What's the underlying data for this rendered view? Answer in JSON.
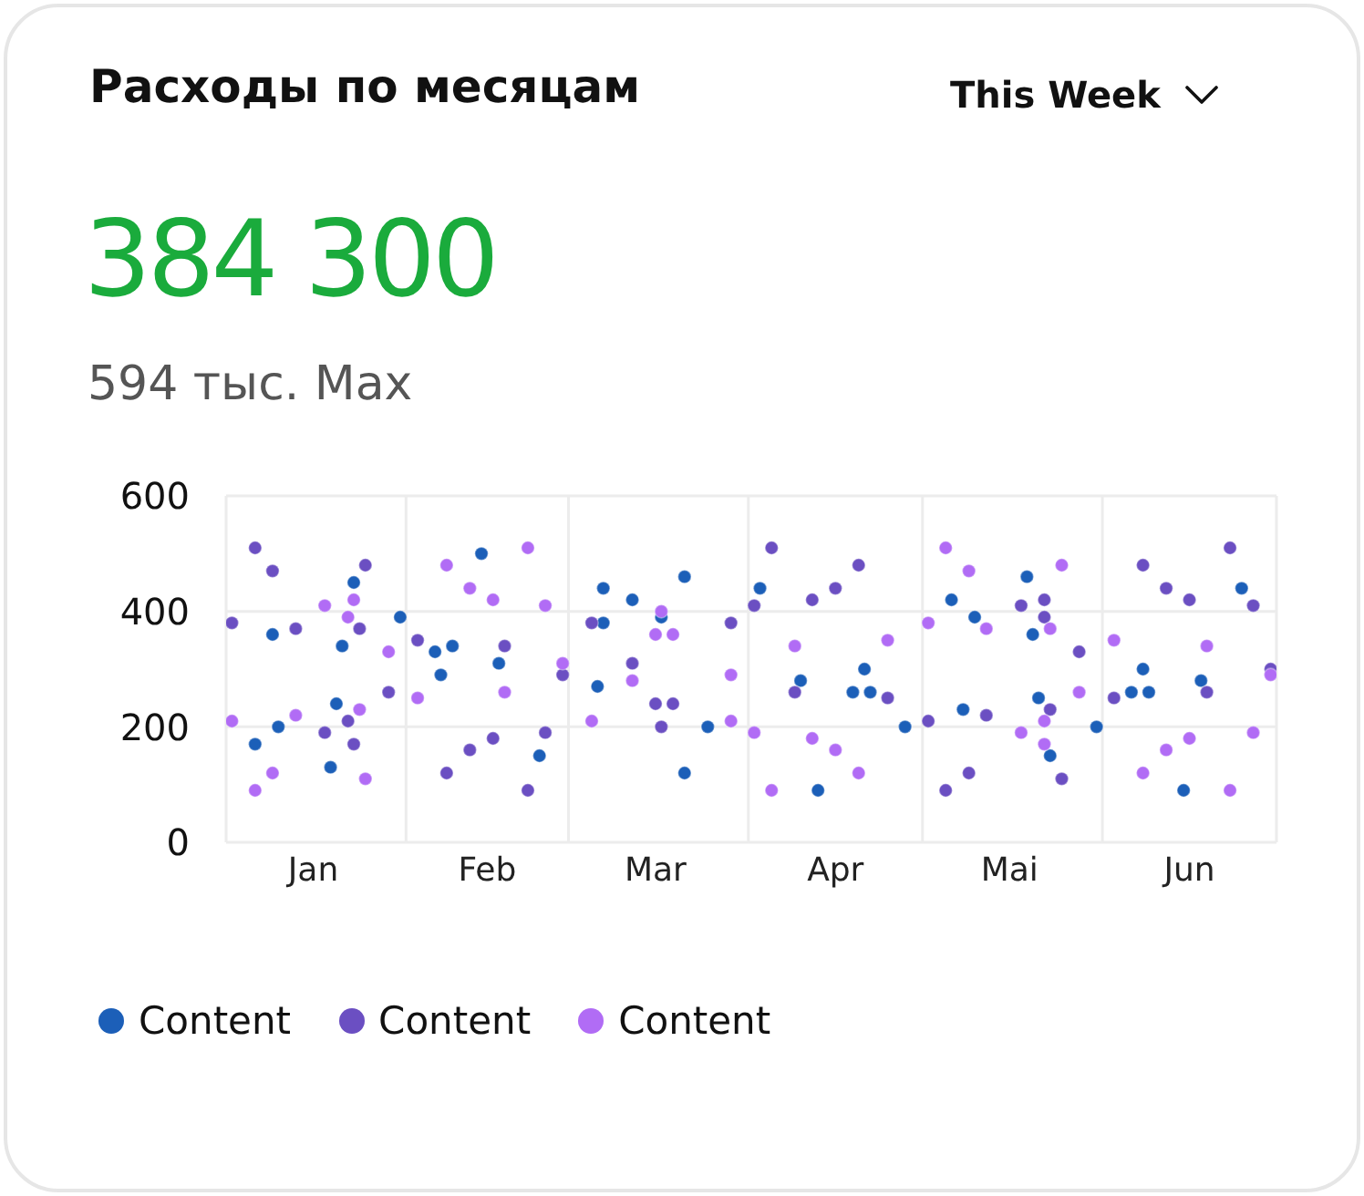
{
  "chart_data": {
    "type": "scatter",
    "title": "Расходы по месяцам",
    "annotations": [
      "384 300",
      "594 тыс. Max",
      "This Week"
    ],
    "xlim": [
      "--01-01",
      "--07-01"
    ],
    "xticks": [
      {
        "value": "--01-01",
        "label": null
      },
      {
        "value": "--01-16",
        "label": "Jan"
      },
      {
        "value": "--02-01",
        "label": null
      },
      {
        "value": "--02-15",
        "label": "Feb"
      },
      {
        "value": "--03-01",
        "label": null
      },
      {
        "value": "--03-16",
        "label": "Mar"
      },
      {
        "value": "--04-01",
        "label": null
      },
      {
        "value": "--04-16",
        "label": "Apr"
      },
      {
        "value": "--05-01",
        "label": null
      },
      {
        "value": "--05-16",
        "label": "Mai"
      },
      {
        "value": "--06-01",
        "label": null
      },
      {
        "value": "--06-16",
        "label": "Jun"
      },
      {
        "value": "--07-01",
        "label": null
      }
    ],
    "ylim": [
      0,
      600
    ],
    "yticks": [
      0,
      200,
      400,
      600
    ],
    "grid": true,
    "legend": "bottom",
    "marker": "circle",
    "series": [
      {
        "name": "Content",
        "color": "#1c5fb8",
        "x": [
          "--01-06",
          "--01-09",
          "--01-10",
          "--01-20",
          "--01-19",
          "--01-21",
          "--01-23",
          "--01-31",
          "--02-06",
          "--02-09",
          "--02-07",
          "--02-14",
          "--02-17",
          "--02-24",
          "--03-07",
          "--03-12",
          "--03-07",
          "--03-17",
          "--03-21",
          "--03-06",
          "--03-25",
          "--03-21",
          "--04-03",
          "--04-10",
          "--04-21",
          "--04-19",
          "--04-22",
          "--04-13",
          "--04-28",
          "--05-06",
          "--05-10",
          "--05-19",
          "--05-20",
          "--05-08",
          "--05-21",
          "--05-23",
          "--05-31",
          "--06-06",
          "--06-08",
          "--06-09",
          "--06-15",
          "--06-18",
          "--06-25"
        ],
        "values": [
          170,
          360,
          200,
          240,
          130,
          340,
          450,
          390,
          330,
          340,
          290,
          500,
          310,
          150,
          440,
          420,
          380,
          390,
          460,
          270,
          200,
          120,
          440,
          280,
          300,
          260,
          260,
          90,
          200,
          420,
          390,
          460,
          360,
          230,
          250,
          150,
          200,
          260,
          300,
          260,
          90,
          280,
          440
        ]
      },
      {
        "name": "Content",
        "color": "#6b4fc2",
        "x": [
          "--01-06",
          "--01-09",
          "--01-02",
          "--01-13",
          "--01-25",
          "--01-24",
          "--01-29",
          "--01-18",
          "--01-22",
          "--01-23",
          "--02-03",
          "--02-08",
          "--02-12",
          "--02-18",
          "--02-16",
          "--02-25",
          "--02-22",
          "--02-28",
          "--03-05",
          "--03-12",
          "--03-16",
          "--03-19",
          "--03-17",
          "--03-29",
          "--04-05",
          "--04-02",
          "--04-12",
          "--04-16",
          "--04-20",
          "--04-09",
          "--04-25",
          "--05-02",
          "--05-05",
          "--05-09",
          "--05-12",
          "--05-18",
          "--05-22",
          "--05-22",
          "--05-23",
          "--05-25",
          "--05-28",
          "--06-03",
          "--06-08",
          "--06-12",
          "--06-16",
          "--06-23",
          "--06-27",
          "--06-19",
          "--06-30"
        ],
        "values": [
          510,
          470,
          380,
          370,
          480,
          370,
          260,
          190,
          210,
          170,
          350,
          120,
          160,
          340,
          180,
          190,
          90,
          290,
          380,
          310,
          240,
          240,
          200,
          380,
          510,
          410,
          420,
          440,
          480,
          260,
          250,
          210,
          90,
          120,
          220,
          410,
          420,
          390,
          230,
          110,
          330,
          250,
          480,
          440,
          420,
          510,
          410,
          260,
          300
        ]
      },
      {
        "name": "Content",
        "color": "#b16cf5",
        "x": [
          "--01-02",
          "--01-06",
          "--01-09",
          "--01-13",
          "--01-18",
          "--01-23",
          "--01-22",
          "--01-24",
          "--01-25",
          "--01-29",
          "--02-03",
          "--02-08",
          "--02-12",
          "--02-16",
          "--02-22",
          "--02-25",
          "--02-18",
          "--02-28",
          "--03-17",
          "--03-16",
          "--03-19",
          "--03-12",
          "--03-05",
          "--03-29",
          "--03-29",
          "--04-09",
          "--04-02",
          "--04-12",
          "--04-16",
          "--04-20",
          "--04-05",
          "--04-25",
          "--05-02",
          "--05-05",
          "--05-09",
          "--05-12",
          "--05-25",
          "--05-23",
          "--05-28",
          "--05-18",
          "--05-22",
          "--05-22",
          "--06-03",
          "--06-19",
          "--06-30",
          "--06-08",
          "--06-12",
          "--06-16",
          "--06-23",
          "--06-27"
        ],
        "values": [
          210,
          90,
          120,
          220,
          410,
          420,
          390,
          230,
          110,
          330,
          250,
          480,
          440,
          420,
          510,
          410,
          260,
          310,
          400,
          360,
          360,
          280,
          210,
          290,
          210,
          340,
          190,
          180,
          160,
          120,
          90,
          350,
          380,
          510,
          470,
          370,
          480,
          370,
          260,
          190,
          210,
          170,
          350,
          340,
          290,
          120,
          160,
          180,
          90,
          190
        ]
      }
    ]
  }
}
